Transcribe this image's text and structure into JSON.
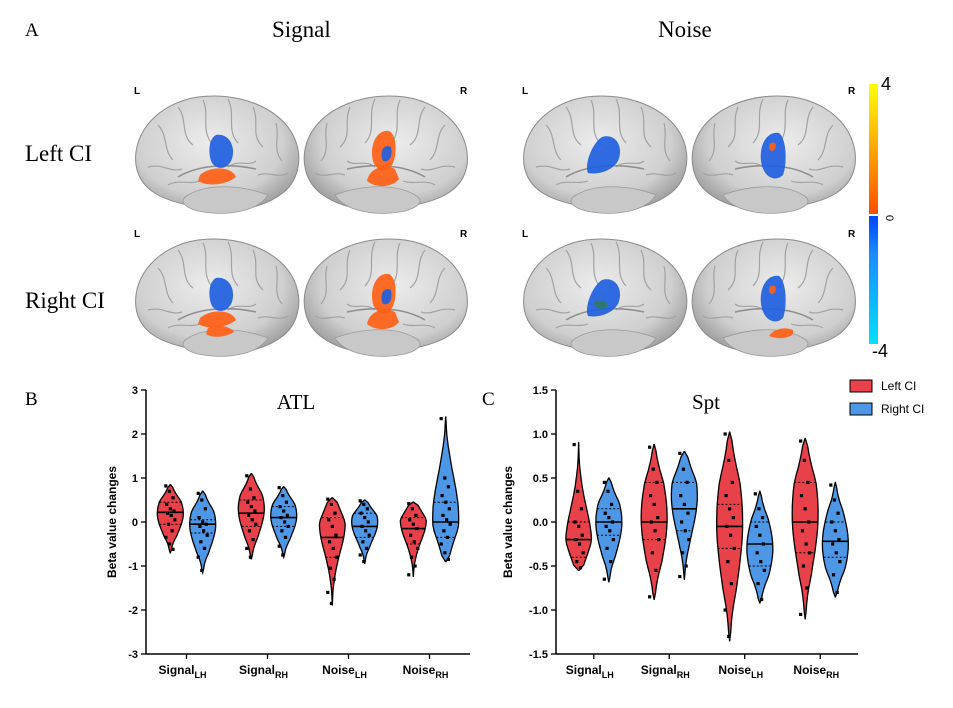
{
  "panel_a": {
    "letter": "A",
    "col_titles": [
      "Signal",
      "Noise"
    ],
    "row_labels": [
      "Left CI",
      "Right CI"
    ],
    "hemi_left": "L",
    "hemi_right": "R",
    "colorbar": {
      "max_label": "4",
      "zero_label": "0",
      "min_label": "-4",
      "pos_colors": [
        "#ffff00",
        "#ff7a00",
        "#ff4d00"
      ],
      "neg_colors": [
        "#0044ff",
        "#1a8cff",
        "#00e0ff"
      ]
    },
    "colors": {
      "brain": "#d4d4d4",
      "positive": "#ff5f15",
      "negative": "#1f5fe0"
    }
  },
  "legend": {
    "items": [
      {
        "label": "Left CI",
        "color": "#e8414a"
      },
      {
        "label": "Right CI",
        "color": "#4d97e6"
      }
    ]
  },
  "chart_data": [
    {
      "type": "violin",
      "letter": "B",
      "title": "ATL",
      "ylabel": "Beta value changes",
      "ylim": [
        -3,
        3
      ],
      "yticks": [
        -3,
        -2,
        -1,
        0,
        1,
        2,
        3
      ],
      "groups": [
        {
          "label": "Signal",
          "sub": "LH"
        },
        {
          "label": "Signal",
          "sub": "RH"
        },
        {
          "label": "Noise",
          "sub": "LH"
        },
        {
          "label": "Noise",
          "sub": "RH"
        }
      ],
      "series": [
        {
          "name": "Left CI",
          "color": "#e8414a",
          "violins": [
            {
              "min": -0.7,
              "max": 0.85,
              "median": 0.22,
              "q1": -0.05,
              "q3": 0.45,
              "peak": 0.2,
              "points": [
                0.82,
                0.7,
                0.55,
                0.4,
                0.3,
                0.25,
                0.2,
                0.15,
                0.05,
                -0.05,
                -0.2,
                -0.35,
                -0.5,
                -0.62
              ]
            },
            {
              "min": -0.85,
              "max": 1.1,
              "median": 0.2,
              "q1": -0.1,
              "q3": 0.5,
              "peak": 0.3,
              "points": [
                1.05,
                0.75,
                0.55,
                0.45,
                0.35,
                0.25,
                0.15,
                0.05,
                -0.05,
                -0.2,
                -0.4,
                -0.6,
                -0.8
              ]
            },
            {
              "min": -1.9,
              "max": 0.55,
              "median": -0.35,
              "q1": -0.8,
              "q3": 0.1,
              "peak": 0.0,
              "points": [
                0.52,
                0.4,
                0.2,
                0.05,
                -0.1,
                -0.3,
                -0.45,
                -0.6,
                -0.8,
                -1.05,
                -1.3,
                -1.6,
                -1.85
              ]
            },
            {
              "min": -1.25,
              "max": 0.45,
              "median": -0.15,
              "q1": -0.5,
              "q3": 0.1,
              "peak": 0.05,
              "points": [
                0.42,
                0.3,
                0.15,
                0.05,
                -0.05,
                -0.15,
                -0.3,
                -0.45,
                -0.6,
                -0.8,
                -1.0,
                -1.2
              ]
            }
          ]
        },
        {
          "name": "Right CI",
          "color": "#4d97e6",
          "violins": [
            {
              "min": -1.15,
              "max": 0.7,
              "median": -0.05,
              "q1": -0.25,
              "q3": 0.05,
              "peak": -0.05,
              "points": [
                0.65,
                0.5,
                0.3,
                0.1,
                0.0,
                -0.05,
                -0.1,
                -0.2,
                -0.3,
                -0.45,
                -0.6,
                -0.8,
                -1.1
              ]
            },
            {
              "min": -0.8,
              "max": 0.8,
              "median": 0.1,
              "q1": -0.1,
              "q3": 0.35,
              "peak": 0.15,
              "points": [
                0.78,
                0.6,
                0.45,
                0.35,
                0.25,
                0.15,
                0.1,
                0.0,
                -0.1,
                -0.2,
                -0.35,
                -0.55,
                -0.75
              ]
            },
            {
              "min": -0.95,
              "max": 0.5,
              "median": -0.1,
              "q1": -0.35,
              "q3": 0.2,
              "peak": 0.0,
              "points": [
                0.48,
                0.4,
                0.3,
                0.2,
                0.1,
                0.0,
                -0.1,
                -0.2,
                -0.3,
                -0.45,
                -0.6,
                -0.75,
                -0.9
              ]
            },
            {
              "min": -0.9,
              "max": 2.4,
              "median": 0.0,
              "q1": -0.35,
              "q3": 0.45,
              "peak": 0.1,
              "points": [
                2.35,
                1.0,
                0.8,
                0.6,
                0.45,
                0.3,
                0.15,
                0.05,
                -0.05,
                -0.2,
                -0.35,
                -0.5,
                -0.7,
                -0.85
              ]
            }
          ]
        }
      ]
    },
    {
      "type": "violin",
      "letter": "C",
      "title": "Spt",
      "ylabel": "Beta value changes",
      "ylim": [
        -1.5,
        1.5
      ],
      "yticks": [
        -1.5,
        -1.0,
        -0.5,
        0.0,
        0.5,
        1.0,
        1.5
      ],
      "groups": [
        {
          "label": "Signal",
          "sub": "LH"
        },
        {
          "label": "Signal",
          "sub": "RH"
        },
        {
          "label": "Noise",
          "sub": "LH"
        },
        {
          "label": "Noise",
          "sub": "RH"
        }
      ],
      "series": [
        {
          "name": "Left CI",
          "color": "#e8414a",
          "violins": [
            {
              "min": -0.55,
              "max": 0.9,
              "median": -0.2,
              "q1": -0.4,
              "q3": 0.0,
              "peak": -0.25,
              "points": [
                0.88,
                0.35,
                0.15,
                0.0,
                -0.05,
                -0.15,
                -0.2,
                -0.25,
                -0.35,
                -0.45,
                -0.52
              ]
            },
            {
              "min": -0.88,
              "max": 0.88,
              "median": 0.0,
              "q1": -0.2,
              "q3": 0.45,
              "peak": 0.05,
              "points": [
                0.85,
                0.6,
                0.45,
                0.3,
                0.2,
                0.05,
                0.0,
                -0.1,
                -0.2,
                -0.35,
                -0.55,
                -0.85
              ]
            },
            {
              "min": -1.35,
              "max": 1.02,
              "median": -0.05,
              "q1": -0.3,
              "q3": 0.2,
              "peak": 0.0,
              "points": [
                1.0,
                0.7,
                0.45,
                0.3,
                0.15,
                0.05,
                -0.05,
                -0.15,
                -0.3,
                -0.45,
                -0.7,
                -1.0,
                -1.3
              ]
            },
            {
              "min": -1.1,
              "max": 0.95,
              "median": 0.0,
              "q1": -0.35,
              "q3": 0.45,
              "peak": 0.1,
              "points": [
                0.92,
                0.7,
                0.45,
                0.3,
                0.15,
                0.0,
                -0.1,
                -0.25,
                -0.35,
                -0.5,
                -0.75,
                -1.05
              ]
            }
          ]
        },
        {
          "name": "Right CI",
          "color": "#4d97e6",
          "violins": [
            {
              "min": -0.68,
              "max": 0.5,
              "median": 0.0,
              "q1": -0.15,
              "q3": 0.15,
              "peak": 0.0,
              "points": [
                0.45,
                0.35,
                0.2,
                0.1,
                0.05,
                0.0,
                -0.05,
                -0.1,
                -0.2,
                -0.3,
                -0.45,
                -0.65
              ]
            },
            {
              "min": -0.65,
              "max": 0.8,
              "median": 0.15,
              "q1": -0.1,
              "q3": 0.45,
              "peak": 0.3,
              "points": [
                0.78,
                0.6,
                0.45,
                0.3,
                0.2,
                0.1,
                0.0,
                -0.1,
                -0.2,
                -0.35,
                -0.5,
                -0.62
              ]
            },
            {
              "min": -0.92,
              "max": 0.35,
              "median": -0.25,
              "q1": -0.5,
              "q3": 0.0,
              "peak": -0.3,
              "points": [
                0.32,
                0.15,
                0.05,
                -0.05,
                -0.15,
                -0.25,
                -0.35,
                -0.45,
                -0.55,
                -0.7,
                -0.88
              ]
            },
            {
              "min": -0.85,
              "max": 0.45,
              "median": -0.22,
              "q1": -0.4,
              "q3": 0.0,
              "peak": -0.25,
              "points": [
                0.42,
                0.25,
                0.1,
                0.0,
                -0.1,
                -0.2,
                -0.25,
                -0.35,
                -0.45,
                -0.6,
                -0.8
              ]
            }
          ]
        }
      ]
    }
  ]
}
